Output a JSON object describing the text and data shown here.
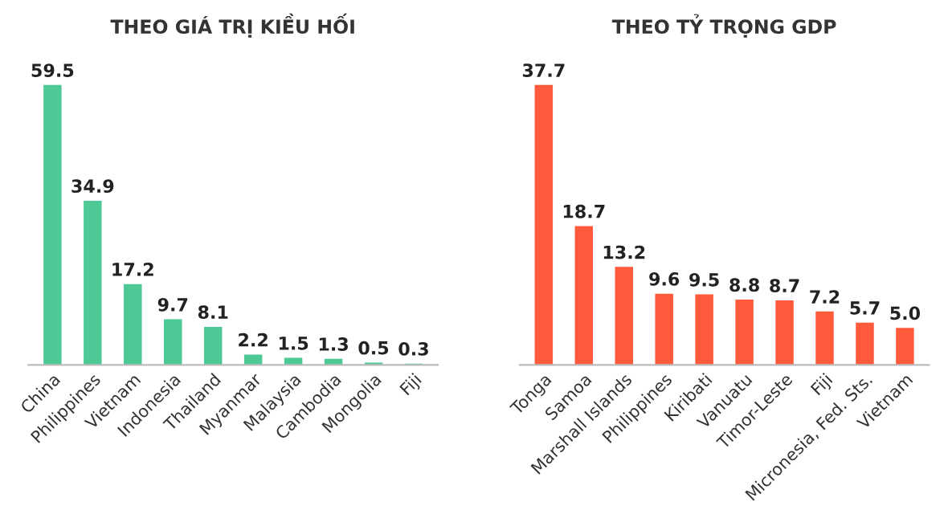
{
  "chart_data": [
    {
      "type": "bar",
      "title": "THEO GIÁ TRỊ KIỀU HỐI",
      "categories": [
        "China",
        "Philippines",
        "Vietnam",
        "Indonesia",
        "Thailand",
        "Myanmar",
        "Malaysia",
        "Cambodia",
        "Mongolia",
        "Fiji"
      ],
      "values": [
        59.5,
        34.9,
        17.2,
        9.7,
        8.1,
        2.2,
        1.5,
        1.3,
        0.5,
        0.3
      ],
      "color": "#4dc995",
      "data_labels": true,
      "tick_labels": "x",
      "grid": false,
      "legend": false
    },
    {
      "type": "bar",
      "title": "THEO TỶ TRỌNG GDP",
      "categories": [
        "Tonga",
        "Samoa",
        "Marshall Islands",
        "Philippines",
        "Kiribati",
        "Vanuatu",
        "Timor-Leste",
        "Fiji",
        "Micronesia, Fed. Sts.",
        "Vietnam"
      ],
      "values": [
        37.7,
        18.7,
        13.2,
        9.6,
        9.5,
        8.8,
        8.7,
        7.2,
        5.7,
        5.0
      ],
      "value_labels": [
        "37.7",
        "18.7",
        "13.2",
        "9.6",
        "9.5",
        "8.8",
        "8.7",
        "7.2",
        "5.7",
        "5.0"
      ],
      "color": "#ff5a3c",
      "tick_labels": "x",
      "grid": false,
      "legend": false
    }
  ]
}
